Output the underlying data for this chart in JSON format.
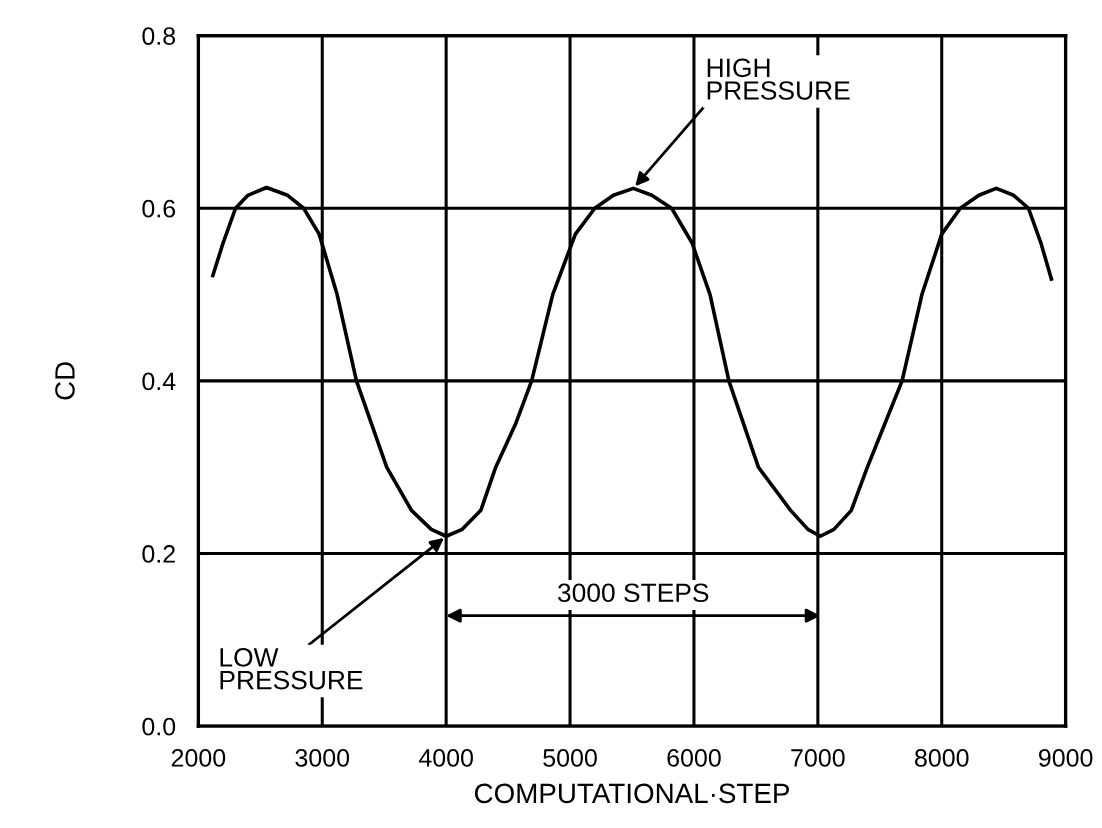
{
  "chart_data": {
    "type": "line",
    "xlabel": "COMPUTATIONAL·STEP",
    "ylabel": "CD",
    "xlim": [
      2000,
      9000
    ],
    "xticks": [
      2000,
      3000,
      4000,
      5000,
      6000,
      7000,
      8000,
      9000
    ],
    "ylim": [
      0,
      0.8
    ],
    "yticks": [
      {
        "value": 0,
        "label": "0.0"
      },
      {
        "value": 0.2,
        "label": "0.2"
      },
      {
        "value": 0.4,
        "label": "0.4"
      },
      {
        "value": 0.6,
        "label": "0.6"
      },
      {
        "value": 0.8,
        "label": "0.8"
      }
    ],
    "grid": true,
    "marker": "none",
    "line_style": "solid",
    "series": [
      {
        "color": "#000000",
        "x": [
          2117,
          2200,
          2300,
          2400,
          2550,
          2720,
          2850,
          2975,
          3120,
          3276,
          3520,
          3720,
          3880,
          4000,
          4130,
          4280,
          4400,
          4560,
          4690,
          4860,
          5043,
          5200,
          5350,
          5511,
          5660,
          5820,
          5984,
          6130,
          6282,
          6520,
          6780,
          6920,
          7020,
          7130,
          7270,
          7400,
          7540,
          7680,
          7840,
          8000,
          8150,
          8300,
          8440,
          8580,
          8700,
          8800,
          8885
        ],
        "values": [
          0.522,
          0.56,
          0.6,
          0.615,
          0.624,
          0.615,
          0.6,
          0.57,
          0.5,
          0.4,
          0.3,
          0.25,
          0.228,
          0.22,
          0.228,
          0.25,
          0.3,
          0.35,
          0.4,
          0.5,
          0.57,
          0.6,
          0.615,
          0.623,
          0.615,
          0.6,
          0.56,
          0.5,
          0.4,
          0.3,
          0.25,
          0.228,
          0.22,
          0.228,
          0.25,
          0.3,
          0.35,
          0.4,
          0.5,
          0.57,
          0.6,
          0.615,
          0.623,
          0.615,
          0.6,
          0.56,
          0.518
        ]
      }
    ],
    "annotations": [
      {
        "text": "HIGH\nPRESSURE",
        "x": 5511,
        "y": 0.623
      },
      {
        "text": "LOW\nPRESSURE",
        "x": 4000,
        "y": 0.22
      },
      "3000 STEPS"
    ]
  }
}
